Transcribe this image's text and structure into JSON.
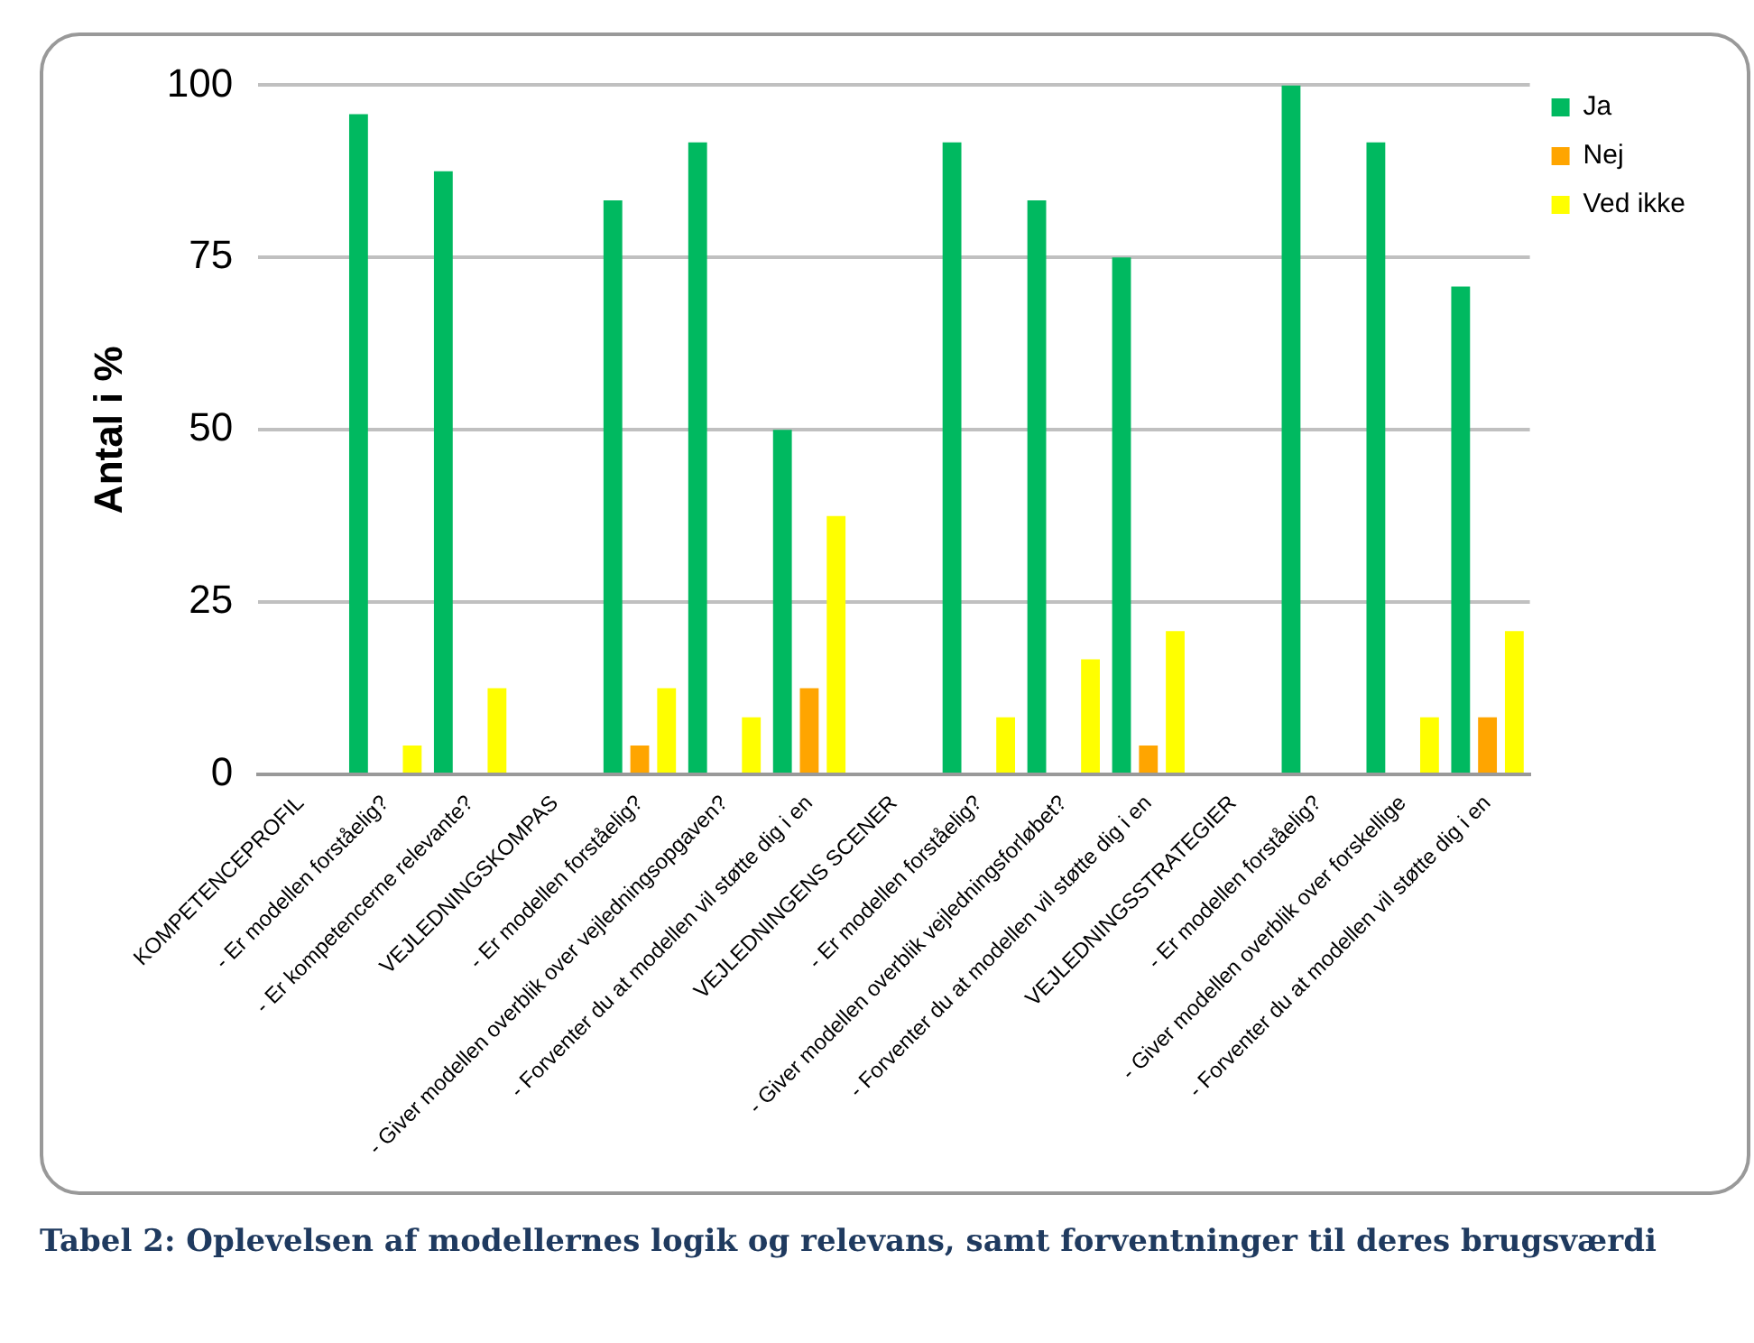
{
  "chart_data": {
    "type": "bar",
    "ylabel": "Antal i %",
    "categories": [
      "KOMPETENCEPROFIL",
      "- Er modellen forståelig?",
      "- Er kompetencerne relevante?",
      "VEJLEDNINGSKOMPAS",
      "- Er modellen forståelig?",
      "- Giver modellen overblik over vejledningsopgaven?",
      "- Forventer du at modellen vil støtte dig i en",
      "VEJLEDNINGENS SCENER",
      "- Er modellen forståelig?",
      "- Giver modellen overblik vejledningsforløbet?",
      "- Forventer du at modellen vil støtte dig i en",
      "VEJLEDNINGSSTRATEGIER",
      "- Er modellen forståelig?",
      "- Giver modellen overblik over forskellige",
      "- Forventer du at modellen vil støtte dig i en"
    ],
    "series": [
      {
        "name": "Ja",
        "color": "#00b960",
        "values": [
          0,
          95.8,
          87.5,
          0,
          83.3,
          91.7,
          50,
          0,
          91.7,
          83.3,
          75,
          0,
          100,
          91.7,
          70.8
        ]
      },
      {
        "name": "Nej",
        "color": "#ffa500",
        "values": [
          0,
          0,
          0,
          0,
          4.2,
          0,
          12.5,
          0,
          0,
          0,
          4.2,
          0,
          0,
          0,
          8.3
        ]
      },
      {
        "name": "Ved ikke",
        "color": "#ffff00",
        "values": [
          0,
          4.2,
          12.5,
          0,
          12.5,
          8.3,
          37.5,
          0,
          8.3,
          16.7,
          20.8,
          0,
          0,
          8.3,
          20.8
        ]
      }
    ],
    "ylim": [
      0,
      100
    ],
    "yticks": [
      0,
      25,
      50,
      75,
      100
    ],
    "grid": "y",
    "legend": "top right",
    "annotations": [
      "Tabel 2: Oplevelsen af modellernes logik og relevans, samt forventninger til deres brugsværdi"
    ]
  }
}
